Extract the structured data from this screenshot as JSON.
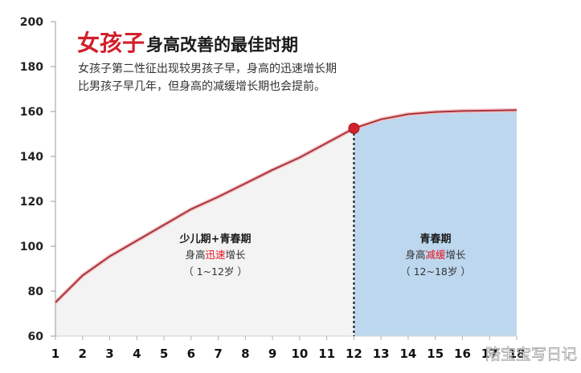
{
  "header": {
    "title_highlight": "女孩子",
    "title_rest": "身高改善的最佳时期",
    "subtitle_line1": "女孩子第二性征出现较男孩子早，身高的迅速增长期",
    "subtitle_line2": "比男孩子早几年，但身高的减缓增长期也会提前。"
  },
  "regions": {
    "left": {
      "heading": "少儿期+青春期",
      "text_pre": "身高",
      "text_highlight": "迅速",
      "text_post": "增长",
      "range": "（ 1~12岁 ）",
      "fill": "#f3f3f3"
    },
    "right": {
      "heading": "青春期",
      "text_pre": "身高",
      "text_highlight": "减缓",
      "text_post": "增长",
      "range": "（ 12~18岁 ）",
      "fill": "#bdd7ee"
    }
  },
  "watermark": "陪宝宝写日记",
  "colors": {
    "line": "#a8343a",
    "marker": "#d4202b",
    "highlight_text": "#e8141f",
    "title_accent": "#d21f2b"
  },
  "chart_data": {
    "type": "area",
    "title": "女孩子身高改善的最佳时期",
    "xlabel": "",
    "ylabel": "",
    "x": [
      1,
      2,
      3,
      4,
      5,
      6,
      7,
      8,
      9,
      10,
      11,
      12,
      13,
      14,
      15,
      16,
      17,
      18
    ],
    "series": [
      {
        "name": "身高",
        "values": [
          75,
          87,
          95.5,
          102.5,
          109.5,
          116.5,
          122,
          128,
          134,
          139.5,
          146,
          152.5,
          156.5,
          158.8,
          159.8,
          160.2,
          160.4,
          160.6
        ]
      }
    ],
    "xticks": [
      "1",
      "2",
      "3",
      "4",
      "5",
      "6",
      "7",
      "8",
      "9",
      "10",
      "11",
      "12",
      "13",
      "14",
      "15",
      "16",
      "17",
      "18"
    ],
    "yticks": [
      60,
      80,
      100,
      120,
      140,
      160,
      180,
      200
    ],
    "ylim": [
      60,
      200
    ],
    "xlim": [
      1,
      18
    ],
    "grid": false,
    "annotations": [
      {
        "type": "marker",
        "x": 12,
        "y": 152.5
      },
      {
        "type": "vline-dashed",
        "x": 12
      },
      {
        "type": "region",
        "from": 1,
        "to": 12,
        "label": "少儿期+青春期 身高迅速增长 （1~12岁）"
      },
      {
        "type": "region",
        "from": 12,
        "to": 18,
        "label": "青春期 身高减缓增长 （12~18岁）"
      }
    ]
  }
}
